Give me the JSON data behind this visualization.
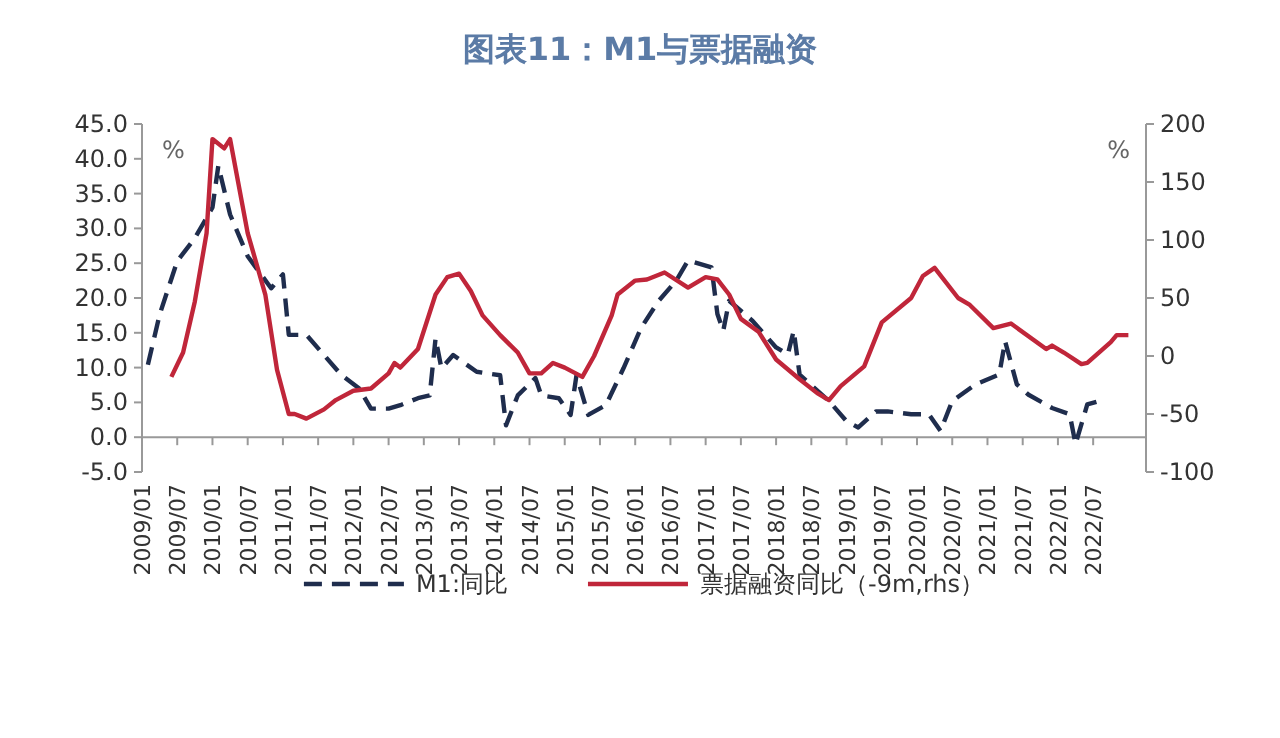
{
  "chart_data": {
    "type": "line",
    "title": "图表11：M1与票据融资",
    "ylabel": "%",
    "y2label": "%",
    "xlim": [
      "2009-01",
      "2023-04"
    ],
    "xticks": [
      {
        "value": "2009-01",
        "label": "2009/01"
      },
      {
        "value": "2009-07",
        "label": "2009/07"
      },
      {
        "value": "2010-01",
        "label": "2010/01"
      },
      {
        "value": "2010-07",
        "label": "2010/07"
      },
      {
        "value": "2011-01",
        "label": "2011/01"
      },
      {
        "value": "2011-07",
        "label": "2011/07"
      },
      {
        "value": "2012-01",
        "label": "2012/01"
      },
      {
        "value": "2012-07",
        "label": "2012/07"
      },
      {
        "value": "2013-01",
        "label": "2013/01"
      },
      {
        "value": "2013-07",
        "label": "2013/07"
      },
      {
        "value": "2014-01",
        "label": "2014/01"
      },
      {
        "value": "2014-07",
        "label": "2014/07"
      },
      {
        "value": "2015-01",
        "label": "2015/01"
      },
      {
        "value": "2015-07",
        "label": "2015/07"
      },
      {
        "value": "2016-01",
        "label": "2016/01"
      },
      {
        "value": "2016-07",
        "label": "2016/07"
      },
      {
        "value": "2017-01",
        "label": "2017/01"
      },
      {
        "value": "2017-07",
        "label": "2017/07"
      },
      {
        "value": "2018-01",
        "label": "2018/01"
      },
      {
        "value": "2018-07",
        "label": "2018/07"
      },
      {
        "value": "2019-01",
        "label": "2019/01"
      },
      {
        "value": "2019-07",
        "label": "2019/07"
      },
      {
        "value": "2020-01",
        "label": "2020/01"
      },
      {
        "value": "2020-07",
        "label": "2020/07"
      },
      {
        "value": "2021-01",
        "label": "2021/01"
      },
      {
        "value": "2021-07",
        "label": "2021/07"
      },
      {
        "value": "2022-01",
        "label": "2022/01"
      },
      {
        "value": "2022-07",
        "label": "2022/07"
      }
    ],
    "ylim": [
      -5,
      45
    ],
    "yticks": [
      {
        "value": -5,
        "label": "-5.0"
      },
      {
        "value": 0,
        "label": "0.0"
      },
      {
        "value": 5,
        "label": "5.0"
      },
      {
        "value": 10,
        "label": "10.0"
      },
      {
        "value": 15,
        "label": "15.0"
      },
      {
        "value": 20,
        "label": "20.0"
      },
      {
        "value": 25,
        "label": "25.0"
      },
      {
        "value": 30,
        "label": "30.0"
      },
      {
        "value": 35,
        "label": "35.0"
      },
      {
        "value": 40,
        "label": "40.0"
      },
      {
        "value": 45,
        "label": "45.0"
      }
    ],
    "y2lim": [
      -100,
      200
    ],
    "y2ticks": [
      -100,
      -50,
      0,
      50,
      100,
      150,
      200
    ],
    "legend": "bottom",
    "series": [
      {
        "name": "M1:同比",
        "color": "#1f2d4d",
        "line_style": "dashed",
        "x": [
          "2009-02",
          "2009-04",
          "2009-07",
          "2009-10",
          "2010-01",
          "2010-02",
          "2010-04",
          "2010-07",
          "2010-11",
          "2011-01",
          "2011-02",
          "2011-05",
          "2011-08",
          "2011-11",
          "2012-02",
          "2012-04",
          "2012-07",
          "2012-09",
          "2012-12",
          "2013-02",
          "2013-03",
          "2013-04",
          "2013-06",
          "2013-10",
          "2014-02",
          "2014-03",
          "2014-05",
          "2014-08",
          "2014-09",
          "2014-12",
          "2015-02",
          "2015-03",
          "2015-05",
          "2015-08",
          "2015-11",
          "2016-02",
          "2016-05",
          "2016-08",
          "2016-10",
          "2017-02",
          "2017-03",
          "2017-04",
          "2017-05",
          "2017-09",
          "2017-11",
          "2018-01",
          "2018-03",
          "2018-04",
          "2018-05",
          "2018-10",
          "2019-01",
          "2019-03",
          "2019-06",
          "2019-08",
          "2019-12",
          "2020-03",
          "2020-05",
          "2020-07",
          "2020-11",
          "2021-03",
          "2021-04",
          "2021-06",
          "2021-08",
          "2021-12",
          "2022-03",
          "2022-04",
          "2022-06",
          "2022-08"
        ],
        "values": [
          10.4,
          17.6,
          25.3,
          28.6,
          33,
          39,
          32,
          26,
          21.4,
          23.4,
          14.7,
          14.7,
          11.8,
          8.9,
          7,
          4.1,
          4.1,
          4.6,
          5.6,
          6,
          14.2,
          9.9,
          11.8,
          9.4,
          8.9,
          1.7,
          6,
          8.5,
          6,
          5.6,
          3.2,
          8.9,
          3.2,
          4.6,
          9.9,
          15.7,
          19.6,
          22.5,
          25.4,
          24.4,
          17.7,
          15.3,
          19.6,
          16.7,
          14.8,
          12.9,
          11.9,
          15.3,
          9,
          5.2,
          2.3,
          1.4,
          3.7,
          3.7,
          3.3,
          3.3,
          0.9,
          5.2,
          7.6,
          9,
          13.8,
          7.6,
          6.1,
          4.2,
          3.3,
          -1,
          4.7,
          5.2
        ]
      },
      {
        "name": "票据融资同比（-9m,rhs）",
        "color": "#c0263a",
        "line_style": "solid",
        "axis": "y2",
        "x": [
          "2009-06",
          "2009-08",
          "2009-10",
          "2009-12",
          "2010-01",
          "2010-03",
          "2010-04",
          "2010-07",
          "2010-10",
          "2010-12",
          "2011-02",
          "2011-03",
          "2011-05",
          "2011-08",
          "2011-10",
          "2012-01",
          "2012-04",
          "2012-07",
          "2012-08",
          "2012-09",
          "2012-12",
          "2013-03",
          "2013-05",
          "2013-07",
          "2013-09",
          "2013-11",
          "2014-02",
          "2014-05",
          "2014-07",
          "2014-09",
          "2014-11",
          "2015-01",
          "2015-04",
          "2015-06",
          "2015-09",
          "2015-10",
          "2016-01",
          "2016-03",
          "2016-06",
          "2016-10",
          "2017-01",
          "2017-03",
          "2017-05",
          "2017-07",
          "2017-10",
          "2018-01",
          "2018-05",
          "2018-08",
          "2018-10",
          "2018-12",
          "2019-04",
          "2019-07",
          "2019-12",
          "2020-02",
          "2020-04",
          "2020-08",
          "2020-10",
          "2021-02",
          "2021-05",
          "2021-11",
          "2021-12",
          "2022-02",
          "2022-05",
          "2022-06",
          "2022-10",
          "2022-11",
          "2023-01"
        ],
        "values": [
          -18,
          3,
          47,
          106,
          187,
          179,
          187,
          106,
          53,
          -12,
          -50,
          -50,
          -54,
          -46,
          -38,
          -30,
          -28,
          -15,
          -6,
          -10,
          6,
          53,
          68,
          71,
          56,
          35,
          18,
          3,
          -15,
          -15,
          -6,
          -10,
          -18,
          0,
          35,
          53,
          65,
          66,
          72,
          59,
          68,
          66,
          53,
          32,
          21,
          -3,
          -20,
          -32,
          -38,
          -26,
          -9,
          29,
          50,
          69,
          76,
          50,
          44,
          24,
          28,
          6,
          9,
          3,
          -7,
          -6,
          12,
          18,
          18
        ]
      }
    ]
  }
}
